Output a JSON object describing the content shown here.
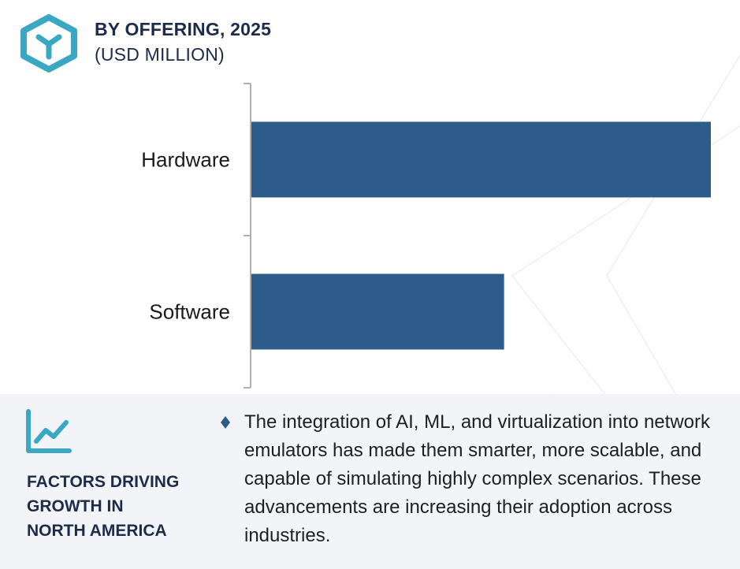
{
  "header": {
    "title": "BY OFFERING, 2025",
    "subtitle": "(USD MILLION)"
  },
  "colors": {
    "bar": "#2e5c8a",
    "logo": "#3aa7c3",
    "heading": "#1c2b4a",
    "panel_bg": "#f2f4f7"
  },
  "chart_data": {
    "type": "bar",
    "orientation": "horizontal",
    "categories": [
      "Hardware",
      "Software"
    ],
    "values": [
      100,
      55
    ],
    "title": "BY OFFERING, 2025",
    "subtitle": "(USD MILLION)",
    "xlabel": "",
    "ylabel": "",
    "xlim": [
      0,
      100
    ],
    "grid": false
  },
  "factors": {
    "icon": "trend-line-icon",
    "title": "FACTORS DRIVING GROWTH IN NORTH AMERICA",
    "title_lines": [
      "FACTORS DRIVING",
      "GROWTH IN",
      "NORTH AMERICA"
    ],
    "bullet_icon": "diamond-bullet-icon",
    "bullet_text": "The integration of AI, ML, and virtualization into network emulators has made them smarter, more scalable, and capable of simulating highly complex scenarios. These advancements are increasing their adoption across industries."
  }
}
